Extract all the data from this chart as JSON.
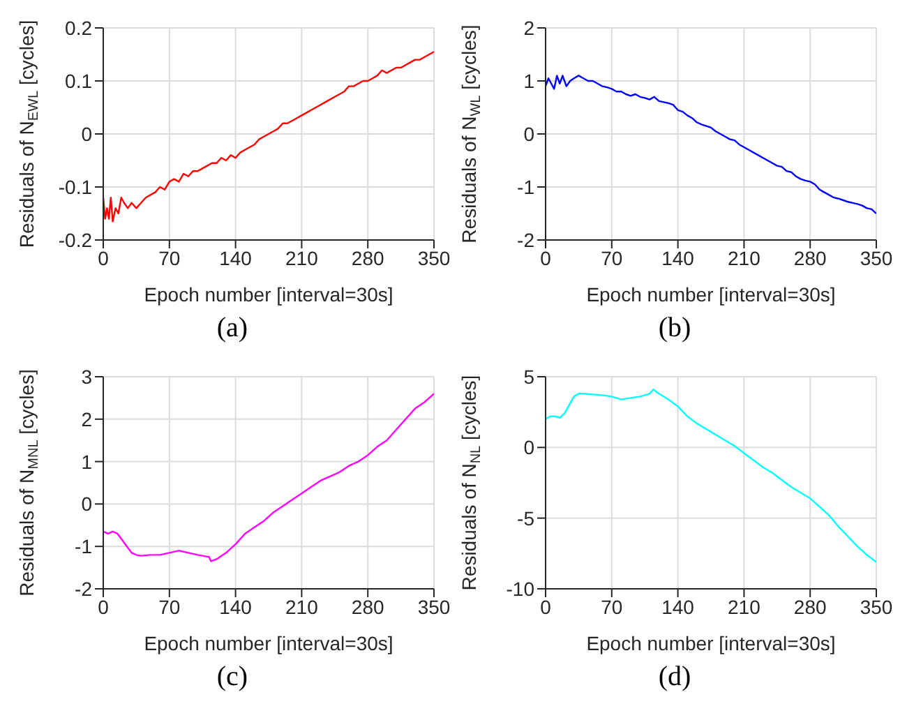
{
  "chart_data": [
    {
      "type": "line",
      "title": "(a)",
      "xlabel": "Epoch number [interval=30s]",
      "ylabel": "Residuals of N$_{EWL}$ [cycles]",
      "xlim": [
        0,
        350
      ],
      "xticks": [
        0,
        70,
        140,
        210,
        280,
        350
      ],
      "ylim": [
        -0.2,
        0.2
      ],
      "yticks": [
        -0.2,
        -0.1,
        0,
        0.1,
        0.2
      ],
      "grid": true,
      "x": [
        0,
        2,
        4,
        6,
        8,
        10,
        13,
        16,
        19,
        22,
        26,
        30,
        35,
        40,
        45,
        50,
        55,
        60,
        65,
        70,
        75,
        80,
        85,
        90,
        95,
        100,
        105,
        110,
        115,
        120,
        125,
        130,
        135,
        140,
        145,
        150,
        155,
        160,
        165,
        170,
        175,
        180,
        185,
        190,
        195,
        200,
        205,
        210,
        215,
        220,
        225,
        230,
        235,
        240,
        245,
        250,
        255,
        260,
        265,
        270,
        275,
        280,
        285,
        290,
        295,
        300,
        305,
        310,
        315,
        320,
        325,
        330,
        335,
        340,
        345,
        350
      ],
      "series": [
        {
          "color": "#ff0000",
          "values": [
            -0.12,
            -0.16,
            -0.14,
            -0.16,
            -0.12,
            -0.165,
            -0.14,
            -0.15,
            -0.12,
            -0.13,
            -0.14,
            -0.13,
            -0.14,
            -0.13,
            -0.12,
            -0.115,
            -0.11,
            -0.1,
            -0.105,
            -0.09,
            -0.085,
            -0.09,
            -0.075,
            -0.08,
            -0.07,
            -0.07,
            -0.065,
            -0.06,
            -0.055,
            -0.055,
            -0.045,
            -0.05,
            -0.04,
            -0.045,
            -0.035,
            -0.03,
            -0.025,
            -0.02,
            -0.01,
            -0.005,
            0,
            0.005,
            0.01,
            0.02,
            0.02,
            0.025,
            0.03,
            0.035,
            0.04,
            0.045,
            0.05,
            0.055,
            0.06,
            0.065,
            0.07,
            0.075,
            0.08,
            0.09,
            0.09,
            0.095,
            0.1,
            0.1,
            0.105,
            0.11,
            0.12,
            0.115,
            0.12,
            0.125,
            0.125,
            0.13,
            0.135,
            0.14,
            0.14,
            0.145,
            0.15,
            0.155
          ]
        }
      ]
    },
    {
      "type": "line",
      "title": "(b)",
      "xlabel": "Epoch number [interval=30s]",
      "ylabel": "Residuals of N$_{WL}$ [cycles]",
      "xlim": [
        0,
        350
      ],
      "xticks": [
        0,
        70,
        140,
        210,
        280,
        350
      ],
      "ylim": [
        -2,
        2
      ],
      "yticks": [
        -2,
        -1,
        0,
        1,
        2
      ],
      "grid": true,
      "x": [
        0,
        3,
        6,
        9,
        12,
        15,
        18,
        22,
        26,
        30,
        35,
        40,
        45,
        50,
        55,
        60,
        65,
        70,
        75,
        80,
        85,
        90,
        95,
        100,
        105,
        110,
        115,
        120,
        125,
        130,
        135,
        140,
        145,
        150,
        155,
        160,
        165,
        170,
        175,
        180,
        185,
        190,
        195,
        200,
        205,
        210,
        215,
        220,
        225,
        230,
        235,
        240,
        245,
        250,
        255,
        260,
        265,
        270,
        275,
        280,
        285,
        290,
        295,
        300,
        305,
        310,
        315,
        320,
        325,
        330,
        335,
        340,
        345,
        350
      ],
      "series": [
        {
          "color": "#0000ff",
          "values": [
            0.9,
            1.05,
            0.95,
            0.85,
            1.1,
            0.95,
            1.1,
            0.9,
            1.0,
            1.05,
            1.1,
            1.05,
            1.0,
            1.0,
            0.95,
            0.9,
            0.88,
            0.85,
            0.8,
            0.8,
            0.75,
            0.72,
            0.75,
            0.7,
            0.68,
            0.65,
            0.7,
            0.62,
            0.6,
            0.58,
            0.55,
            0.45,
            0.42,
            0.35,
            0.3,
            0.22,
            0.18,
            0.15,
            0.12,
            0.05,
            0,
            -0.05,
            -0.1,
            -0.12,
            -0.2,
            -0.25,
            -0.3,
            -0.35,
            -0.4,
            -0.45,
            -0.5,
            -0.55,
            -0.6,
            -0.62,
            -0.7,
            -0.72,
            -0.8,
            -0.85,
            -0.88,
            -0.9,
            -0.95,
            -1.05,
            -1.1,
            -1.15,
            -1.2,
            -1.22,
            -1.25,
            -1.28,
            -1.3,
            -1.32,
            -1.35,
            -1.4,
            -1.42,
            -1.5
          ]
        }
      ]
    },
    {
      "type": "line",
      "title": "(c)",
      "xlabel": "Epoch number [interval=30s]",
      "ylabel": "Residuals of N$_{MNL}$ [cycles]",
      "xlim": [
        0,
        350
      ],
      "xticks": [
        0,
        70,
        140,
        210,
        280,
        350
      ],
      "ylim": [
        -2,
        3
      ],
      "yticks": [
        -2,
        -1,
        0,
        1,
        2,
        3
      ],
      "grid": true,
      "x": [
        0,
        5,
        10,
        15,
        20,
        25,
        30,
        35,
        40,
        50,
        60,
        70,
        80,
        90,
        100,
        112,
        114,
        120,
        130,
        140,
        150,
        160,
        170,
        180,
        190,
        200,
        210,
        220,
        230,
        240,
        250,
        260,
        270,
        280,
        290,
        300,
        310,
        320,
        330,
        340,
        350
      ],
      "series": [
        {
          "color": "#ff00ff",
          "values": [
            -0.65,
            -0.7,
            -0.65,
            -0.7,
            -0.85,
            -1.0,
            -1.15,
            -1.2,
            -1.22,
            -1.2,
            -1.2,
            -1.15,
            -1.1,
            -1.15,
            -1.2,
            -1.25,
            -1.35,
            -1.3,
            -1.15,
            -0.95,
            -0.7,
            -0.55,
            -0.4,
            -0.2,
            -0.05,
            0.1,
            0.25,
            0.4,
            0.55,
            0.65,
            0.75,
            0.9,
            1.0,
            1.15,
            1.35,
            1.5,
            1.75,
            2.0,
            2.25,
            2.4,
            2.6
          ]
        }
      ]
    },
    {
      "type": "line",
      "title": "(d)",
      "xlabel": "Epoch number [interval=30s]",
      "ylabel": "Residuals of N$_{NL}$ [cycles]",
      "xlim": [
        0,
        350
      ],
      "xticks": [
        0,
        70,
        140,
        210,
        280,
        350
      ],
      "ylim": [
        -10,
        5
      ],
      "yticks": [
        -10,
        -5,
        0,
        5
      ],
      "grid": true,
      "x": [
        0,
        5,
        10,
        15,
        20,
        25,
        30,
        35,
        40,
        50,
        60,
        70,
        80,
        90,
        100,
        110,
        114,
        120,
        130,
        140,
        150,
        160,
        170,
        180,
        190,
        200,
        210,
        220,
        230,
        240,
        250,
        260,
        270,
        280,
        290,
        300,
        310,
        320,
        330,
        340,
        350
      ],
      "series": [
        {
          "color": "#00ffff",
          "values": [
            2.0,
            2.2,
            2.2,
            2.1,
            2.4,
            3.0,
            3.6,
            3.8,
            3.8,
            3.75,
            3.7,
            3.6,
            3.4,
            3.5,
            3.6,
            3.8,
            4.1,
            3.8,
            3.4,
            2.9,
            2.2,
            1.7,
            1.3,
            0.9,
            0.5,
            0.1,
            -0.4,
            -0.9,
            -1.4,
            -1.8,
            -2.3,
            -2.8,
            -3.2,
            -3.6,
            -4.2,
            -4.8,
            -5.6,
            -6.3,
            -7.0,
            -7.6,
            -8.1
          ]
        }
      ]
    }
  ]
}
